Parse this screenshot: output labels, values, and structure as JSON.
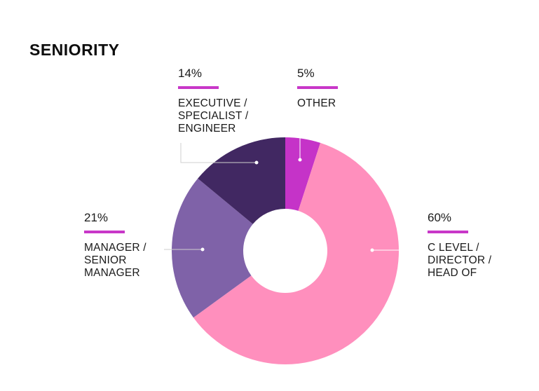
{
  "title": "SENIORITY",
  "accent_color": "#c837c8",
  "chart_data": {
    "type": "pie",
    "title": "SENIORITY",
    "donut": true,
    "slices": [
      {
        "label": "OTHER",
        "label_lines": "OTHER",
        "value": 5,
        "display": "5%",
        "color": "#c533c8"
      },
      {
        "label": "C LEVEL / DIRECTOR / HEAD OF",
        "label_lines": "C LEVEL /\nDIRECTOR /\nHEAD OF",
        "value": 60,
        "display": "60%",
        "color": "#ff8fbd"
      },
      {
        "label": "MANAGER / SENIOR MANAGER",
        "label_lines": "MANAGER /\nSENIOR\nMANAGER",
        "value": 21,
        "display": "21%",
        "color": "#7f62a8"
      },
      {
        "label": "EXECUTIVE / SPECIALIST / ENGINEER",
        "label_lines": "EXECUTIVE /\nSPECIALIST /\nENGINEER",
        "value": 14,
        "display": "14%",
        "color": "#412862"
      }
    ]
  }
}
